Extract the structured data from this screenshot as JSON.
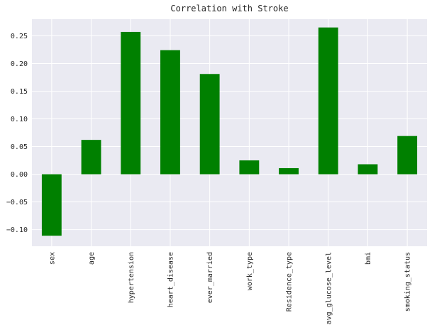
{
  "chart_data": {
    "type": "bar",
    "title": "Correlation with Stroke",
    "xlabel": "",
    "ylabel": "",
    "categories": [
      "sex",
      "age",
      "hypertension",
      "heart_disease",
      "ever_married",
      "work_type",
      "Residence_type",
      "avg_glucose_level",
      "bmi",
      "smoking_status"
    ],
    "values": [
      -0.111,
      0.062,
      0.257,
      0.224,
      0.181,
      0.025,
      0.011,
      0.265,
      0.018,
      0.069
    ],
    "ylim": [
      -0.13,
      0.28
    ],
    "yticks": [
      -0.1,
      -0.05,
      0.0,
      0.05,
      0.1,
      0.15,
      0.2,
      0.25
    ],
    "ytick_labels": [
      "−0.10",
      "−0.05",
      "0.00",
      "0.05",
      "0.10",
      "0.15",
      "0.20",
      "0.25"
    ],
    "bar_color": "#008000",
    "background_color": "#eaeaf2",
    "grid": true,
    "legend": "none"
  }
}
